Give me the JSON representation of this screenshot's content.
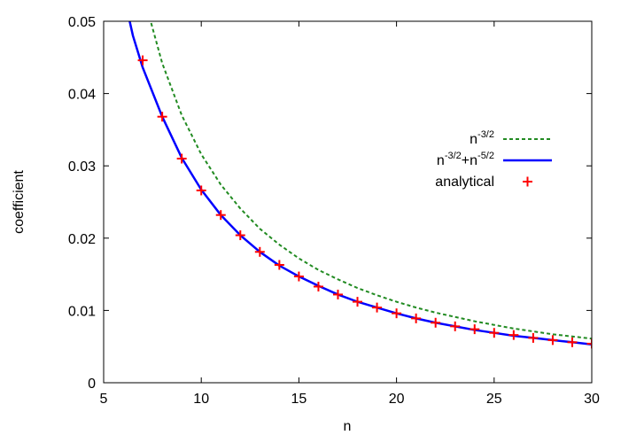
{
  "chart_data": {
    "type": "line",
    "xlabel": "n",
    "ylabel": "coefficient",
    "xlim": [
      5,
      30
    ],
    "ylim": [
      0,
      0.05
    ],
    "x_ticks": [
      5,
      10,
      15,
      20,
      25,
      30
    ],
    "x_tick_labels": [
      "5",
      "10",
      "15",
      "20",
      "25",
      "30"
    ],
    "y_ticks": [
      0,
      0.01,
      0.02,
      0.03,
      0.04,
      0.05
    ],
    "y_tick_labels": [
      "0",
      "0.01",
      "0.02",
      "0.03",
      "0.04",
      "0.05"
    ],
    "grid": false,
    "legend_position": "right",
    "series": [
      {
        "name_base": "n",
        "name_sup": "-3/2",
        "style": "dashed",
        "color": "#228B22",
        "x": [
          6.8,
          7,
          8,
          9,
          10,
          11,
          12,
          13,
          14,
          15,
          16,
          17,
          18,
          19,
          20,
          21,
          22,
          23,
          24,
          25,
          26,
          27,
          28,
          29,
          30
        ],
        "y": [
          0.0564,
          0.054,
          0.0442,
          0.037,
          0.0316,
          0.0274,
          0.0241,
          0.0213,
          0.0191,
          0.0172,
          0.0156,
          0.0143,
          0.0131,
          0.0121,
          0.0112,
          0.0104,
          0.0097,
          0.0091,
          0.0085,
          0.008,
          0.0075,
          0.0071,
          0.0067,
          0.0064,
          0.0061
        ]
      },
      {
        "name_base": "n",
        "name_sup": "-3/2",
        "name_plus": "+n",
        "name_sup2": "-5/2",
        "style": "solid",
        "color": "#0000FF",
        "x": [
          6.3,
          6.5,
          7,
          8,
          9,
          10,
          11,
          12,
          13,
          14,
          15,
          16,
          17,
          18,
          19,
          20,
          21,
          22,
          23,
          24,
          25,
          26,
          27,
          28,
          29,
          30
        ],
        "y": [
          0.0504,
          0.048,
          0.0436,
          0.0368,
          0.0311,
          0.0267,
          0.0232,
          0.0204,
          0.0181,
          0.0162,
          0.0147,
          0.0134,
          0.0122,
          0.0112,
          0.0104,
          0.0096,
          0.0089,
          0.0083,
          0.0078,
          0.0073,
          0.0069,
          0.0065,
          0.0062,
          0.0059,
          0.0056,
          0.0053
        ]
      },
      {
        "name": "analytical",
        "style": "markers",
        "marker": "plus",
        "color": "#FF0000",
        "x": [
          7,
          8,
          9,
          10,
          11,
          12,
          13,
          14,
          15,
          16,
          17,
          18,
          19,
          20,
          21,
          22,
          23,
          24,
          25,
          26,
          27,
          28,
          29,
          30
        ],
        "y": [
          0.0446,
          0.0368,
          0.031,
          0.0266,
          0.0232,
          0.0204,
          0.0181,
          0.0163,
          0.0147,
          0.0133,
          0.0122,
          0.0112,
          0.0104,
          0.0096,
          0.0089,
          0.0083,
          0.0078,
          0.0074,
          0.0069,
          0.0066,
          0.0062,
          0.0059,
          0.0056,
          0.0054
        ]
      }
    ]
  }
}
